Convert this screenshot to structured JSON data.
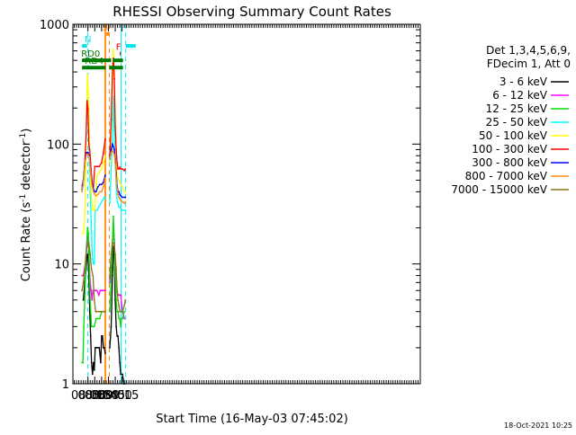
{
  "chart_data": {
    "type": "line",
    "title": "RHESSI Observing Summary Count Rates",
    "xlabel": "Start Time (16-May-03 07:45:02)",
    "ylabel_parts": {
      "pre": "Count Rate (s",
      "sup": "-1",
      "post": " detector",
      "sup2": "-1",
      "close": ")"
    },
    "yscale": "log",
    "xlim": [
      447,
      1210
    ],
    "ylim": [
      1,
      1000
    ],
    "x_ticks": [
      {
        "value": 480,
        "label": "08:00"
      },
      {
        "value": 495,
        "label": "08:15"
      },
      {
        "value": 510,
        "label": "08:30"
      },
      {
        "value": 525,
        "label": "08:45"
      },
      {
        "value": 540,
        "label": "09:00"
      },
      {
        "value": 555,
        "label": "09:15"
      }
    ],
    "y_ticks": [
      {
        "value": 1,
        "label": "1"
      },
      {
        "value": 10,
        "label": "10"
      },
      {
        "value": 100,
        "label": "100"
      },
      {
        "value": 1000,
        "label": "1000"
      }
    ],
    "legend_header": [
      "Det 1,3,4,5,6,9,",
      "FDecim 1, Att 0"
    ],
    "legend_position": "right",
    "timestamp": "18-Oct-2021 10:25",
    "flags": [
      {
        "label": "N",
        "color": "#00e5ee",
        "segments": [
          [
            467,
            478
          ],
          [
            563,
            585
          ]
        ],
        "level": 660,
        "label_at": 480
      },
      {
        "label": "S",
        "color": "#ff8c1a",
        "segments": [
          [
            520,
            527
          ]
        ],
        "level": 830,
        "label_at": 518
      },
      {
        "label": "F",
        "color": "#e00000",
        "segments": [
          [
            550,
            552
          ]
        ],
        "level": 570,
        "label_at": 547
      },
      {
        "label": "RD0",
        "color": "#007a00",
        "segments": [
          [
            467,
            531
          ],
          [
            535,
            557
          ]
        ],
        "level": 500,
        "label_at": 486
      },
      {
        "label": "RD4",
        "color": "#007a00",
        "segments": [
          [
            467,
            519
          ],
          [
            527,
            557
          ]
        ],
        "level": 435,
        "label_at": 494
      }
    ],
    "vlines": [
      {
        "x": 480,
        "color": "#00e5ee",
        "dash": true
      },
      {
        "x": 517,
        "color": "#ff8c1a",
        "dash": false
      },
      {
        "x": 519,
        "color": "#ff8c1a",
        "dash": false
      },
      {
        "x": 527,
        "color": "#ff8c1a",
        "dash": true
      },
      {
        "x": 553,
        "color": "#00e5ee",
        "dash": false
      },
      {
        "x": 563,
        "color": "#00e5ee",
        "dash": true
      }
    ],
    "gap": [
      519,
      526
    ],
    "series": [
      {
        "name": "3 - 6 keV",
        "color": "#000000",
        "x": [
          470,
          473,
          476,
          478,
          480,
          482,
          484,
          486,
          488,
          490,
          492,
          494,
          496,
          499,
          502,
          505,
          508,
          510,
          512,
          514,
          516,
          518,
          528,
          531,
          534,
          536,
          538,
          540,
          542,
          544,
          546,
          548,
          550,
          552,
          556,
          559,
          561
        ],
        "y": [
          5,
          7,
          9,
          12,
          12,
          8,
          4,
          2.5,
          1.5,
          1.2,
          1.5,
          1.3,
          2,
          2,
          2,
          2,
          1.5,
          2.5,
          2.5,
          2,
          2,
          1.8,
          2,
          3,
          8,
          14,
          12,
          5,
          3,
          2.5,
          2.5,
          2,
          1.5,
          1.2,
          1.2,
          1,
          1
        ]
      },
      {
        "name": "6 - 12 keV",
        "color": "#ff00ff",
        "x": [
          467,
          470,
          474,
          477,
          479,
          481,
          483,
          485,
          487,
          489,
          491,
          493,
          496,
          500,
          504,
          507,
          510,
          514,
          518,
          528,
          531,
          534,
          536,
          538,
          540,
          542,
          544,
          546,
          548,
          550,
          552,
          556,
          560
        ],
        "y": [
          8,
          8,
          10,
          14,
          17,
          15,
          10,
          7,
          6,
          5,
          6,
          6,
          6,
          6,
          5.5,
          6,
          6,
          6,
          6,
          7,
          11,
          16,
          20,
          16,
          10,
          8,
          6,
          5.5,
          5.5,
          5.5,
          5.5,
          4,
          3.5
        ]
      },
      {
        "name": "12 - 25 keV",
        "color": "#00dd00",
        "x": [
          467,
          469,
          471,
          473,
          476,
          479,
          481,
          483,
          485,
          488,
          491,
          494,
          498,
          502,
          506,
          510,
          514,
          518,
          528,
          531,
          534,
          536,
          538,
          540,
          542,
          544,
          546,
          548,
          550,
          552,
          554,
          556,
          560
        ],
        "y": [
          1.5,
          1.5,
          3,
          5,
          12,
          20,
          18,
          9,
          5,
          3,
          3,
          3,
          3.5,
          3.5,
          3.5,
          4,
          4,
          4,
          4,
          8,
          15,
          25,
          15,
          8,
          5,
          4,
          4,
          3.5,
          3.5,
          3,
          3.5,
          3.5,
          4
        ]
      },
      {
        "name": "25 - 50 keV",
        "color": "#00ffff",
        "x": [
          467,
          470,
          473,
          475,
          477,
          479,
          481,
          483,
          485,
          487,
          488,
          489,
          490,
          492,
          494,
          496,
          500,
          504,
          508,
          512,
          516,
          518,
          528,
          531,
          534,
          536,
          538,
          540,
          542,
          544,
          546,
          548,
          550,
          552,
          556,
          560,
          562
        ],
        "y": [
          40,
          45,
          60,
          90,
          160,
          240,
          160,
          80,
          40,
          25,
          18,
          13,
          11,
          10,
          10,
          28,
          28,
          30,
          32,
          34,
          36,
          35,
          32,
          60,
          130,
          250,
          130,
          70,
          45,
          33,
          32,
          30,
          30,
          29,
          28,
          28,
          28
        ]
      },
      {
        "name": "50 - 100 keV",
        "color": "#ffff00",
        "x": [
          467,
          470,
          473,
          475,
          477,
          479,
          481,
          483,
          485,
          487,
          489,
          491,
          493,
          495,
          500,
          505,
          510,
          514,
          518,
          528,
          531,
          534,
          536,
          538,
          540,
          542,
          544,
          546,
          548,
          550,
          552,
          556,
          560,
          562
        ],
        "y": [
          18,
          18,
          25,
          60,
          200,
          380,
          260,
          130,
          60,
          40,
          32,
          28,
          28,
          28,
          55,
          58,
          62,
          70,
          80,
          70,
          120,
          350,
          620,
          420,
          170,
          90,
          55,
          52,
          50,
          48,
          46,
          44,
          40,
          40
        ]
      },
      {
        "name": "100 - 300 keV",
        "color": "#ff0000",
        "x": [
          467,
          470,
          473,
          476,
          478,
          480,
          482,
          484,
          486,
          488,
          490,
          492,
          495,
          500,
          505,
          510,
          514,
          518,
          528,
          531,
          534,
          536,
          538,
          540,
          542,
          544,
          546,
          548,
          550,
          552,
          556,
          560,
          562
        ],
        "y": [
          45,
          50,
          70,
          120,
          230,
          200,
          100,
          90,
          70,
          55,
          45,
          44,
          65,
          65,
          65,
          70,
          85,
          110,
          80,
          160,
          420,
          520,
          350,
          140,
          90,
          70,
          62,
          62,
          64,
          62,
          62,
          60,
          62
        ]
      },
      {
        "name": "300 - 800 keV",
        "color": "#0000ff",
        "x": [
          467,
          470,
          474,
          477,
          480,
          483,
          486,
          489,
          492,
          495,
          498,
          502,
          506,
          510,
          514,
          518,
          528,
          531,
          534,
          536,
          538,
          540,
          542,
          544,
          546,
          548,
          550,
          552,
          556,
          560,
          562
        ],
        "y": [
          42,
          50,
          75,
          85,
          85,
          80,
          60,
          48,
          42,
          40,
          40,
          44,
          46,
          46,
          48,
          55,
          75,
          90,
          100,
          95,
          90,
          75,
          58,
          45,
          40,
          40,
          38,
          37,
          36,
          36,
          36
        ]
      },
      {
        "name": "800 - 7000 keV",
        "color": "#ff8c1a",
        "x": [
          467,
          470,
          474,
          477,
          480,
          483,
          486,
          489,
          492,
          495,
          498,
          502,
          506,
          510,
          514,
          518,
          528,
          531,
          534,
          536,
          538,
          540,
          542,
          544,
          546,
          548,
          550,
          552,
          556,
          560,
          562
        ],
        "y": [
          40,
          48,
          72,
          82,
          82,
          78,
          58,
          45,
          40,
          38,
          37,
          38,
          40,
          40,
          44,
          52,
          75,
          85,
          88,
          85,
          82,
          70,
          52,
          42,
          38,
          36,
          35,
          34,
          33,
          32,
          33
        ]
      },
      {
        "name": "7000 - 15000 keV",
        "color": "#8b7514",
        "x": [
          467,
          470,
          473,
          476,
          479,
          482,
          485,
          488,
          491,
          494,
          497,
          500,
          504,
          508,
          512,
          516,
          518,
          528,
          531,
          534,
          537,
          540,
          542,
          544,
          546,
          548,
          550,
          552,
          554,
          556,
          560,
          562
        ],
        "y": [
          6,
          7,
          9,
          12,
          15,
          15,
          12,
          9,
          8,
          5,
          4,
          4,
          4,
          4,
          4,
          4,
          4,
          8,
          12,
          15,
          15,
          12,
          9,
          6,
          5,
          4.5,
          4,
          4,
          4,
          4,
          4.5,
          5
        ]
      }
    ]
  }
}
